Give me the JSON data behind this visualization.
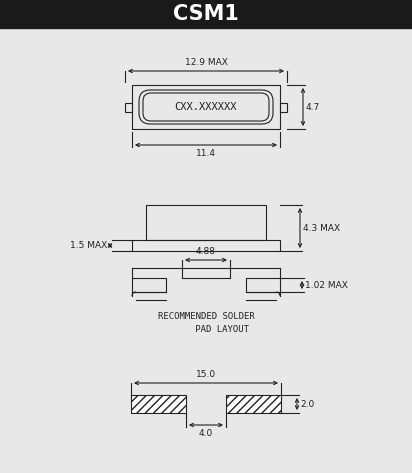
{
  "title": "CSM1",
  "title_bg": "#1a1a1a",
  "title_color": "#ffffff",
  "bg_color": "#e8e8e8",
  "line_color": "#222222",
  "dims": {
    "top_width_max": "12.9 MAX",
    "top_height": "4.7",
    "top_inner_width": "11.4",
    "side_height_max": "4.3 MAX",
    "side_base_height": "1.5 MAX",
    "side_pin_width": "4.88",
    "side_pin_height": "1.02 MAX",
    "pad_total_width": "15.0",
    "pad_gap": "4.0",
    "pad_height": "2.0",
    "label": "CXX.XXXXXX"
  }
}
